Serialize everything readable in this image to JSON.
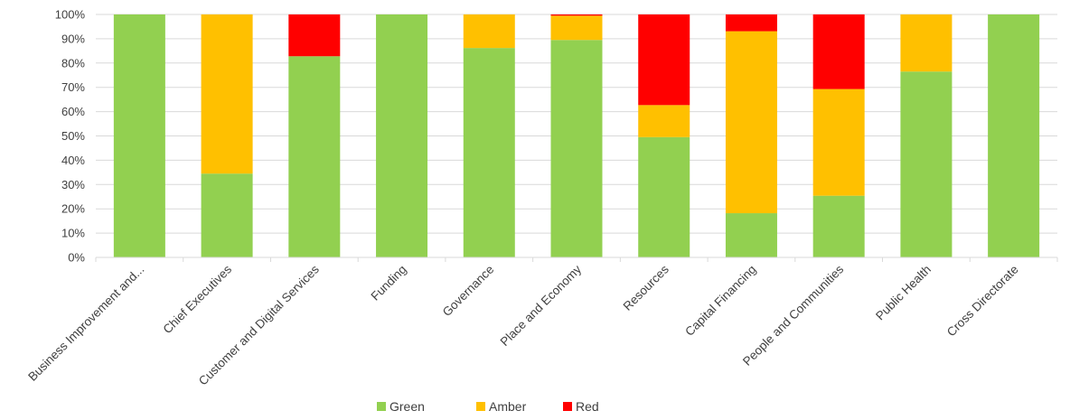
{
  "chart_data": {
    "type": "bar",
    "stacked": true,
    "percent_stacked": true,
    "title": "",
    "xlabel": "",
    "ylabel": "",
    "ylim": [
      0,
      100
    ],
    "yticks": [
      "0%",
      "10%",
      "20%",
      "30%",
      "40%",
      "50%",
      "60%",
      "70%",
      "80%",
      "90%",
      "100%"
    ],
    "grid": true,
    "legend_position": "bottom",
    "categories": [
      "Business Improvement and...",
      "Chief Executives",
      "Customer and Digital Services",
      "Funding",
      "Governance",
      "Place and Economy",
      "Resources",
      "Capital Financing",
      "People and Communities",
      "Public Health",
      "Cross Directorate"
    ],
    "series": [
      {
        "name": "Green",
        "color": "#92d050",
        "values": [
          100,
          34.5,
          82.8,
          100,
          86.2,
          89.5,
          49.5,
          18.2,
          25.4,
          76.5,
          100
        ]
      },
      {
        "name": "Amber",
        "color": "#ffc000",
        "values": [
          0,
          65.5,
          0,
          0,
          13.8,
          10.0,
          13.2,
          74.9,
          43.9,
          23.5,
          0
        ]
      },
      {
        "name": "Red",
        "color": "#ff0000",
        "values": [
          0,
          0,
          17.2,
          0,
          0,
          0.5,
          37.3,
          6.9,
          30.7,
          0,
          0
        ]
      }
    ]
  }
}
